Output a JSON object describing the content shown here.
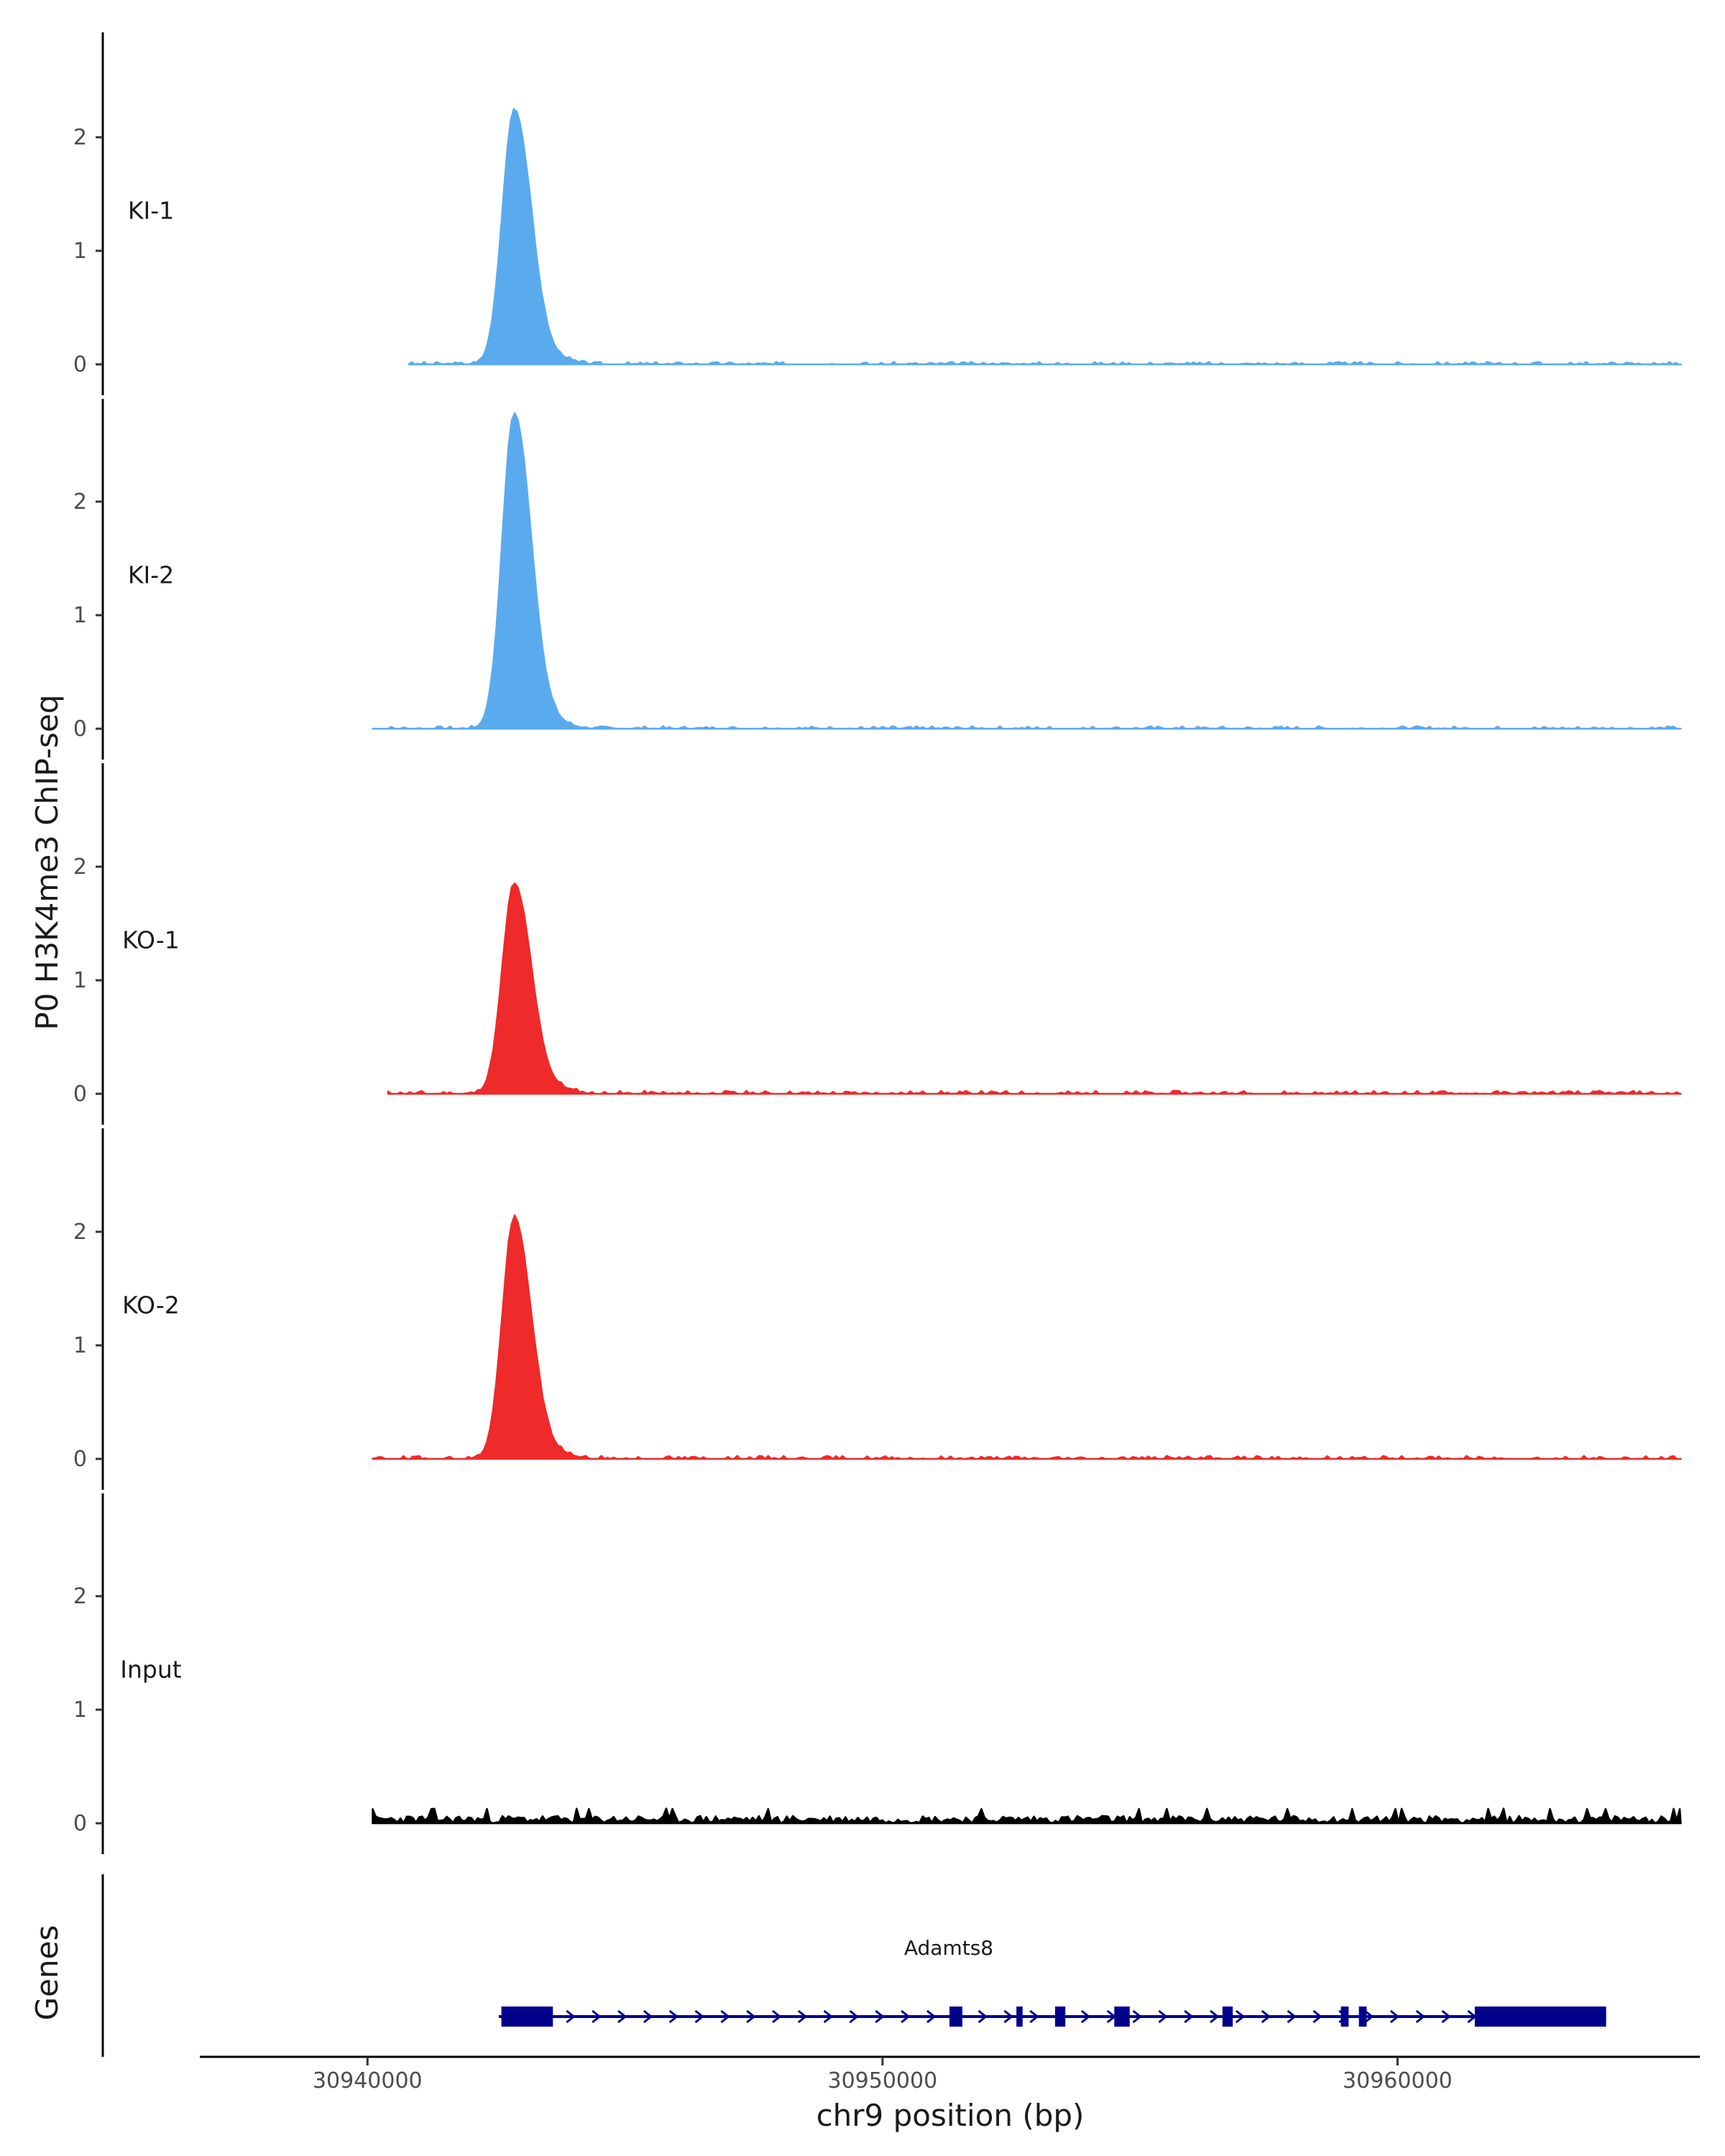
{
  "chart_data": {
    "type": "area",
    "title": "",
    "ylabel": "P0 H3K4me3 ChIP-seq",
    "genes_label": "Genes",
    "xlabel": "chr9 position (bp)",
    "xlim": [
      30936800,
      30965800
    ],
    "x_ticks": [
      30940000,
      30950000,
      30960000
    ],
    "x_tick_labels": [
      "30940000",
      "30950000",
      "30960000"
    ],
    "ylim": [
      0,
      2.85
    ],
    "y_ticks": [
      0,
      1,
      2
    ],
    "y_tick_labels": [
      "0",
      "1",
      "2"
    ],
    "peak_center": 30942850,
    "tracks": [
      {
        "name": "KI-1",
        "color": "#5aabed",
        "peak": 2.25,
        "noise": 0.025,
        "seed": 3,
        "start": 30940800
      },
      {
        "name": "KI-2",
        "color": "#5aabed",
        "peak": 2.78,
        "noise": 0.025,
        "seed": 7,
        "start": 30940100
      },
      {
        "name": "KO-1",
        "color": "#ee2a2a",
        "peak": 1.85,
        "noise": 0.03,
        "seed": 11,
        "start": 30940400
      },
      {
        "name": "KO-2",
        "color": "#ee2a2a",
        "peak": 2.12,
        "noise": 0.03,
        "seed": 19,
        "start": 30940100
      },
      {
        "name": "Input",
        "color": "#000000",
        "peak": 0.0,
        "noise": 0.07,
        "seed": 23,
        "start": 30940100
      }
    ],
    "track_end": 30965500,
    "gene": {
      "name": "Adamts8",
      "color": "#00008b",
      "start": 30942550,
      "end": 30964050,
      "strand": "+",
      "exons": [
        [
          30942600,
          30943600
        ],
        [
          30951300,
          30951550
        ],
        [
          30952600,
          30952720
        ],
        [
          30953350,
          30953550
        ],
        [
          30954500,
          30954800
        ],
        [
          30956600,
          30956800
        ],
        [
          30958900,
          30959050
        ],
        [
          30959250,
          30959400
        ],
        [
          30961500,
          30964050
        ]
      ]
    }
  }
}
